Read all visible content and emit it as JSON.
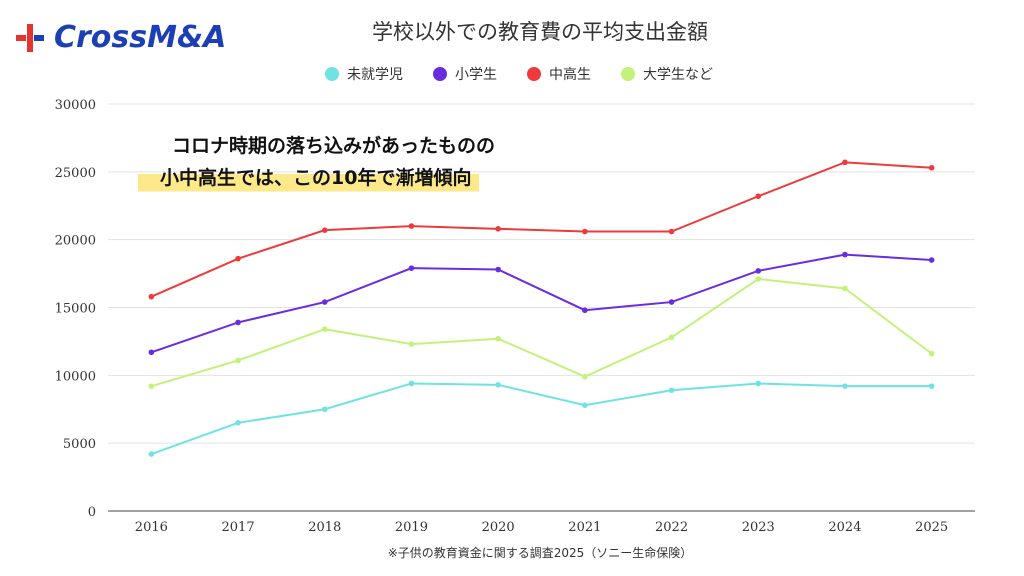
{
  "logo": {
    "text": "CrossM&A"
  },
  "header": {
    "title": "学校以外での教育費の平均支出金額"
  },
  "callout": {
    "line1": "コロナ時期の落ち込みがあったものの",
    "line2": "小中高生では、この10年で漸増傾向"
  },
  "source": "※子供の教育資金に関する調査2025（ソニー生命保険）",
  "chart_data": {
    "type": "line",
    "title": "学校以外での教育費の平均支出金額",
    "xlabel": "",
    "ylabel": "",
    "x": [
      2016,
      2017,
      2018,
      2019,
      2020,
      2021,
      2022,
      2023,
      2024,
      2025
    ],
    "ylim": [
      0,
      30000
    ],
    "yticks": [
      0,
      5000,
      10000,
      15000,
      20000,
      25000,
      30000
    ],
    "grid": true,
    "legend_position": "top",
    "series": [
      {
        "name": "未就学児",
        "color": "#6ee3e3",
        "values": [
          4200,
          6500,
          7500,
          9400,
          9300,
          7800,
          8900,
          9400,
          9200,
          9200
        ]
      },
      {
        "name": "小学生",
        "color": "#6a2ce0",
        "values": [
          11700,
          13900,
          15400,
          17900,
          17800,
          14800,
          15400,
          17700,
          18900,
          18500
        ]
      },
      {
        "name": "中高生",
        "color": "#ee3a3a",
        "values": [
          15800,
          18600,
          20700,
          21000,
          20800,
          20600,
          20600,
          23200,
          25700,
          25300
        ]
      },
      {
        "name": "大学生など",
        "color": "#c2f27a",
        "values": [
          9200,
          11100,
          13400,
          12300,
          12700,
          9900,
          12800,
          17100,
          16400,
          11600
        ]
      }
    ]
  }
}
